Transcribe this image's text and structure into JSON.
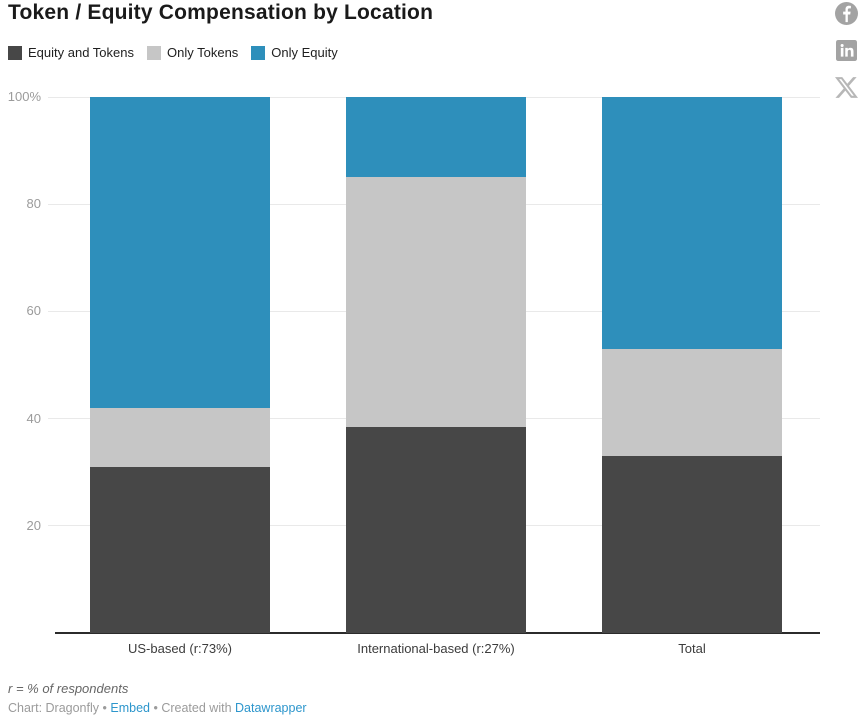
{
  "header": {
    "title": "Token / Equity Compensation by Location"
  },
  "social": {
    "facebook_glyph": "f",
    "linkedin_glyph": "in",
    "x_glyph": "X",
    "icon_color": "#a3a3a3",
    "x_icon_color": "#b7b7b7"
  },
  "chart_data": {
    "type": "bar",
    "stacked": true,
    "title": "Token / Equity Compensation by Location",
    "categories": [
      "US-based (r:73%)",
      "International-based (r:27%)",
      "Total"
    ],
    "series": [
      {
        "name": "Equity and Tokens",
        "color": "#474747",
        "values": [
          31,
          38.5,
          33
        ]
      },
      {
        "name": "Only Tokens",
        "color": "#c6c6c6",
        "values": [
          11,
          46.5,
          20
        ]
      },
      {
        "name": "Only Equity",
        "color": "#2e8fbb",
        "values": [
          58,
          15,
          47
        ]
      }
    ],
    "ylim": [
      0,
      100
    ],
    "y_ticks": [
      {
        "value": 100,
        "label": "100%"
      },
      {
        "value": 80,
        "label": "80"
      },
      {
        "value": 60,
        "label": "60"
      },
      {
        "value": 40,
        "label": "40"
      },
      {
        "value": 20,
        "label": "20"
      }
    ],
    "grid": true,
    "legend_position": "top",
    "xlabel": "",
    "ylabel": ""
  },
  "footer": {
    "note": "r = % of respondents",
    "credit": {
      "prefix": "Chart: Dragonfly",
      "separator": "•",
      "embed_label": "Embed",
      "created_with": "Created with",
      "tool_label": "Datawrapper"
    }
  },
  "colors": {
    "link_blue": "#2d96cc",
    "gridline": "#e9e9e9",
    "axis_label": "#9b9b9b"
  }
}
